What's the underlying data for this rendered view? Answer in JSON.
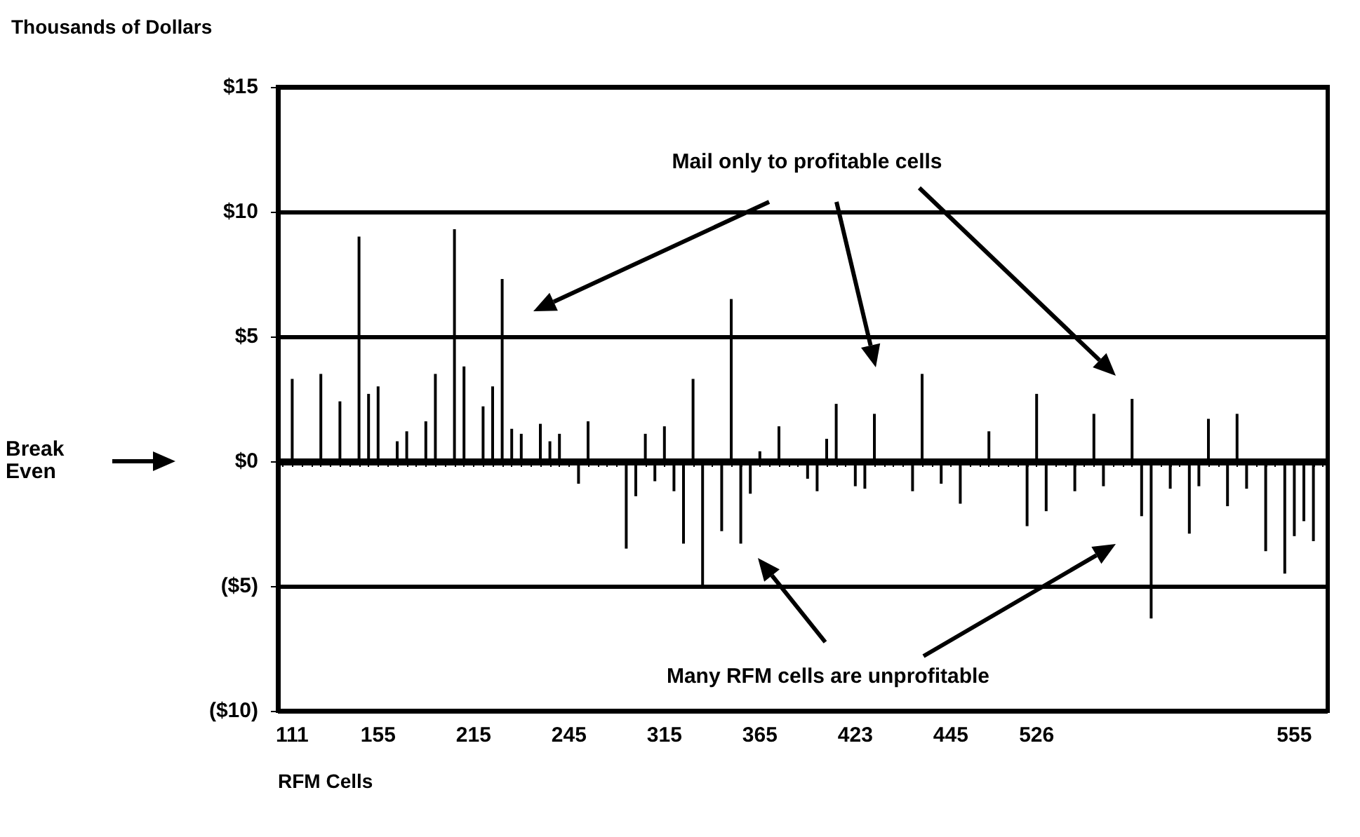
{
  "chart_data": {
    "type": "bar",
    "ylabel": "Thousands of Dollars",
    "xlabel": "RFM Cells",
    "annotations": [
      "Mail only to profitable cells",
      "Many RFM cells are unprofitable"
    ],
    "categories": [
      null,
      "111",
      null,
      null,
      null,
      null,
      null,
      null,
      null,
      null,
      "155",
      null,
      null,
      null,
      null,
      null,
      null,
      null,
      null,
      null,
      "215",
      null,
      null,
      null,
      null,
      null,
      null,
      null,
      null,
      null,
      "245",
      null,
      null,
      null,
      null,
      null,
      null,
      null,
      null,
      null,
      "315",
      null,
      null,
      null,
      null,
      null,
      null,
      null,
      null,
      null,
      "365",
      null,
      null,
      null,
      null,
      null,
      null,
      null,
      null,
      null,
      "423",
      null,
      null,
      null,
      null,
      null,
      null,
      null,
      null,
      null,
      "445",
      null,
      null,
      null,
      null,
      null,
      null,
      null,
      null,
      "526",
      null,
      null,
      null,
      null,
      null,
      null,
      null,
      null,
      null,
      null,
      null,
      null,
      null,
      null,
      null,
      null,
      null,
      null,
      null,
      null,
      null,
      null,
      null,
      null,
      null,
      null,
      "555",
      null,
      null,
      null
    ],
    "values": [
      null,
      3.3,
      null,
      null,
      3.5,
      null,
      2.4,
      null,
      9.0,
      2.7,
      3.0,
      null,
      0.8,
      1.2,
      null,
      1.6,
      3.5,
      null,
      9.3,
      3.8,
      null,
      2.2,
      3.0,
      7.3,
      1.3,
      1.1,
      null,
      1.5,
      0.8,
      1.1,
      null,
      -0.9,
      1.6,
      null,
      null,
      null,
      -3.5,
      -1.4,
      1.1,
      -0.8,
      1.4,
      -1.2,
      -3.3,
      3.3,
      -5.0,
      null,
      -2.8,
      6.5,
      -3.3,
      -1.3,
      0.4,
      null,
      1.4,
      null,
      null,
      -0.7,
      -1.2,
      0.9,
      2.3,
      null,
      -1.0,
      -1.1,
      1.9,
      null,
      null,
      null,
      -1.2,
      3.5,
      null,
      -0.9,
      null,
      -1.7,
      null,
      null,
      1.2,
      null,
      null,
      null,
      -2.6,
      2.7,
      -2.0,
      null,
      null,
      -1.2,
      null,
      1.9,
      -1.0,
      null,
      null,
      2.5,
      -2.2,
      -6.3,
      null,
      -1.1,
      null,
      -2.9,
      -1.0,
      1.7,
      null,
      -1.8,
      1.9,
      -1.1,
      null,
      -3.6,
      null,
      -4.5,
      -3.0,
      -2.4,
      -3.2,
      null
    ],
    "color": "#000000",
    "ylim": [
      -10,
      15
    ],
    "yticks": [
      {
        "value": -10,
        "label": "($10)"
      },
      {
        "value": -5,
        "label": "($5)"
      },
      {
        "value": 0,
        "label": "$0"
      },
      {
        "value": 5,
        "label": "$5"
      },
      {
        "value": 10,
        "label": "$10"
      },
      {
        "value": 15,
        "label": "$15"
      }
    ],
    "grid": "y",
    "ref_lines": [
      {
        "axis": "y",
        "value": 0,
        "label": "Break Even"
      }
    ]
  }
}
